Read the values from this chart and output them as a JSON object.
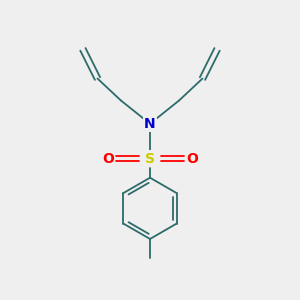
{
  "background_color": "#efefef",
  "bond_color": "#2d6b6b",
  "N_color": "#0000cc",
  "S_color": "#cccc00",
  "O_color": "#ff0000",
  "N_label": "N",
  "S_label": "S",
  "O_label": "O",
  "figsize": [
    3.0,
    3.0
  ],
  "dpi": 100,
  "bond_lw": 1.3
}
